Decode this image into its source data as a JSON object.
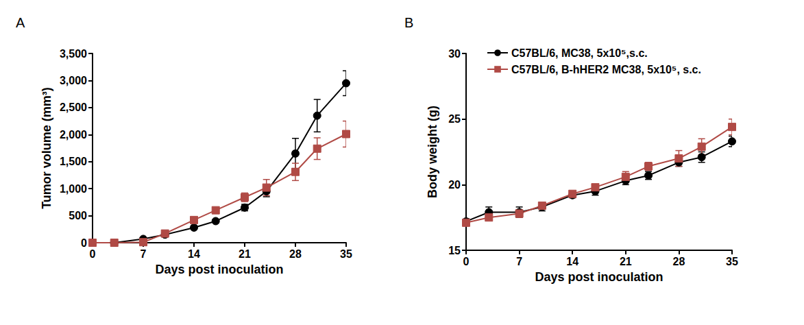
{
  "chart_data": [
    {
      "type": "line",
      "title": "A",
      "x_label": "Days post inoculation",
      "y_label": "Tumor volume (mm³)",
      "x": [
        0,
        3,
        7,
        10,
        14,
        17,
        21,
        24,
        28,
        31,
        35
      ],
      "xlim": [
        0,
        35
      ],
      "xticks": [
        0,
        7,
        14,
        21,
        28,
        35
      ],
      "ylim": [
        0,
        3500
      ],
      "yticks": [
        0,
        500,
        1000,
        1500,
        2000,
        2500,
        3000,
        3500
      ],
      "grid": false,
      "series": [
        {
          "name": "C57BL/6, MC38, 5x10⁵,s.c.",
          "color": "#000000",
          "marker": "circle",
          "values": [
            0,
            0,
            70,
            150,
            280,
            400,
            650,
            950,
            1650,
            2350,
            2950
          ],
          "errors": [
            0,
            0,
            10,
            20,
            30,
            30,
            60,
            100,
            280,
            300,
            230
          ]
        },
        {
          "name": "C57BL/6, B-hHER2 MC38, 5x10⁵, s.c.",
          "color": "#b04a45",
          "marker": "square",
          "values": [
            0,
            0,
            10,
            170,
            420,
            600,
            840,
            1020,
            1310,
            1740,
            2010
          ],
          "errors": [
            0,
            0,
            5,
            20,
            30,
            30,
            80,
            150,
            160,
            200,
            240
          ]
        }
      ]
    },
    {
      "type": "line",
      "title": "B",
      "x_label": "Days post inoculation",
      "y_label": "Body weight (g)",
      "x": [
        0,
        3,
        7,
        10,
        14,
        17,
        21,
        24,
        28,
        31,
        35
      ],
      "xlim": [
        0,
        35
      ],
      "xticks": [
        0,
        7,
        14,
        21,
        28,
        35
      ],
      "ylim": [
        15,
        30
      ],
      "yticks": [
        15,
        20,
        25,
        30
      ],
      "grid": false,
      "legend": "upper left",
      "series": [
        {
          "name": "C57BL/6, MC38, 5x10⁵,s.c.",
          "color": "#000000",
          "marker": "circle",
          "values": [
            17.2,
            17.9,
            17.9,
            18.3,
            19.2,
            19.5,
            20.3,
            20.7,
            21.7,
            22.1,
            23.3
          ],
          "errors": [
            0.2,
            0.4,
            0.4,
            0.3,
            0.2,
            0.3,
            0.3,
            0.3,
            0.3,
            0.4,
            0.4
          ]
        },
        {
          "name": "C57BL/6, B-hHER2 MC38, 5x10⁵, s.c.",
          "color": "#b04a45",
          "marker": "square",
          "values": [
            17.1,
            17.5,
            17.8,
            18.4,
            19.3,
            19.8,
            20.6,
            21.4,
            22.0,
            22.9,
            24.4
          ],
          "errors": [
            0.2,
            0.2,
            0.3,
            0.2,
            0.2,
            0.2,
            0.4,
            0.3,
            0.6,
            0.6,
            0.6
          ]
        }
      ]
    }
  ]
}
